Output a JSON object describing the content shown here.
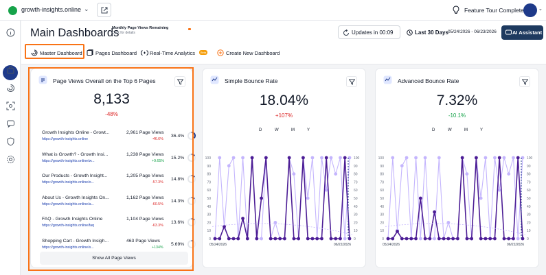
{
  "topbar": {
    "site_name": "growth-insights.online",
    "tour_text": "Feature Tour Completed!"
  },
  "header": {
    "title": "Main Dashboards",
    "pv_title": "Monthly Page Views Remaining",
    "pv_link": "Click for details",
    "pv_remaining_fraction": 0.03,
    "updates_label": "Updates in 00:09",
    "range_label": "Last 30 Days",
    "dates": "05/24/2026 - 06/23/2026",
    "ai_label": "AI Assistant"
  },
  "tabs": [
    {
      "label": "Master Dashboard"
    },
    {
      "label": "Pages Dashboard"
    },
    {
      "label": "Real-Time Analytics",
      "badge": "Beta"
    },
    {
      "label": "Create New Dashboard"
    }
  ],
  "cards": {
    "pages": {
      "title": "Page Views Overall on the Top 6 Pages",
      "value": "8,133",
      "delta": "-48%",
      "rows": [
        {
          "title": "Growth Insights Online - Growt...",
          "url": "https://growth-insights.online",
          "views": "2,961 Page Views",
          "delta": "-46.6%",
          "pct": "36.4%",
          "share": 0.364,
          "dir": "down"
        },
        {
          "title": "What is Growth? - Growth Insi...",
          "url": "https://growth-insights.online/w...",
          "views": "1,238 Page Views",
          "delta": "+9.65%",
          "pct": "15.2%",
          "share": 0.152,
          "dir": "up"
        },
        {
          "title": "Our Products - Growth Insight...",
          "url": "https://growth-insights.online/o...",
          "views": "1,205 Page Views",
          "delta": "-57.3%",
          "pct": "14.8%",
          "share": 0.148,
          "dir": "down"
        },
        {
          "title": "About Us - Growth Insights On...",
          "url": "https://growth-insights.online/a...",
          "views": "1,162 Page Views",
          "delta": "-60.5%",
          "pct": "14.3%",
          "share": 0.143,
          "dir": "down"
        },
        {
          "title": "FAQ - Growth Insights Online",
          "url": "https://growth-insights.online/faq",
          "views": "1,104 Page Views",
          "delta": "-63.3%",
          "pct": "13.6%",
          "share": 0.136,
          "dir": "down"
        },
        {
          "title": "Shopping Cart - Growth Insigh...",
          "url": "https://growth-insights.online/s...",
          "views": "463 Page Views",
          "delta": "+134%",
          "pct": "5.69%",
          "share": 0.0569,
          "dir": "up"
        }
      ],
      "show_all": "Show All Page Views"
    },
    "simple": {
      "title": "Simple Bounce Rate",
      "value": "18.04%",
      "delta": "+107%",
      "periods": [
        "D",
        "W",
        "M",
        "Y"
      ],
      "x_start": "05/24/2026",
      "x_end": "06/22/2026"
    },
    "advanced": {
      "title": "Advanced Bounce Rate",
      "value": "7.32%",
      "delta": "-10.1%",
      "periods": [
        "D",
        "W",
        "M",
        "Y"
      ],
      "x_start": "05/24/2026",
      "x_end": "06/22/2026"
    }
  },
  "chart_data": [
    {
      "type": "line",
      "title": "Simple Bounce Rate",
      "x_labels": [
        "05/24/2026",
        "06/22/2026"
      ],
      "ylim": [
        0,
        100
      ],
      "y_ticks": [
        0,
        10,
        20,
        30,
        40,
        50,
        60,
        70,
        80,
        90,
        100
      ],
      "series": [
        {
          "values": [
            0,
            0,
            15,
            0,
            0,
            0,
            25,
            0,
            100,
            0,
            50,
            100,
            0,
            0,
            0,
            0,
            100,
            0,
            0,
            100,
            0,
            0,
            0,
            0,
            100,
            0,
            0,
            0,
            100,
            0
          ]
        },
        {
          "values": [
            0,
            100,
            14,
            90,
            100,
            0,
            100,
            0,
            100,
            0,
            0,
            100,
            0,
            20,
            0,
            0,
            100,
            80,
            0,
            100,
            50,
            100,
            0,
            100,
            60,
            100,
            80,
            100,
            0,
            100
          ]
        }
      ]
    },
    {
      "type": "line",
      "title": "Advanced Bounce Rate",
      "x_labels": [
        "05/24/2026",
        "06/22/2026"
      ],
      "ylim": [
        0,
        100
      ],
      "y_ticks": [
        0,
        10,
        20,
        30,
        40,
        50,
        60,
        70,
        80,
        90,
        100
      ],
      "series": [
        {
          "values": [
            0,
            0,
            9,
            0,
            0,
            0,
            0,
            50,
            0,
            0,
            33,
            0,
            0,
            0,
            0,
            0,
            100,
            0,
            0,
            100,
            0,
            0,
            0,
            0,
            100,
            0,
            0,
            0,
            100,
            0
          ]
        },
        {
          "values": [
            0,
            100,
            10,
            90,
            100,
            0,
            100,
            0,
            100,
            0,
            0,
            100,
            0,
            20,
            0,
            0,
            100,
            80,
            0,
            100,
            50,
            100,
            0,
            100,
            60,
            100,
            80,
            100,
            0,
            100
          ]
        }
      ]
    }
  ]
}
